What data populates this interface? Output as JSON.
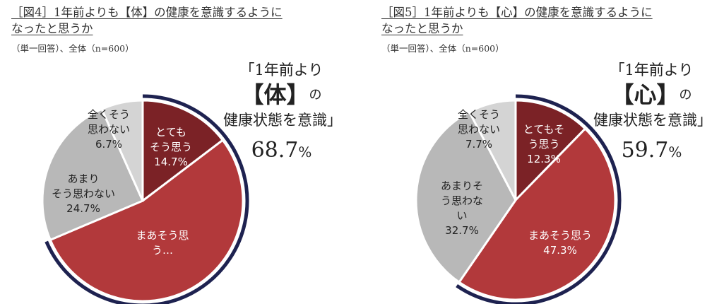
{
  "charts": [
    {
      "title_line1": "［図4］1年前よりも【体】の健康を意識するように",
      "title_line2": "なったと思うか",
      "base": "（単一回答）、全体（n=600）",
      "callout": {
        "line1": "「1年前より",
        "bracket_left": "【",
        "keyword": "体",
        "bracket_right": "】",
        "particle": "の",
        "line3": "健康状態を意識」",
        "value": "68.7",
        "unit": "%"
      }
    },
    {
      "title_line1": "［図5］1年前よりも【心】の健康を意識するように",
      "title_line2": "なったと思うか",
      "base": "（単一回答）、全体（n=600）",
      "callout": {
        "line1": "「1年前より",
        "bracket_left": "【",
        "keyword": "心",
        "bracket_right": "】",
        "particle": "の",
        "line3": "健康状態を意識」",
        "value": "59.7",
        "unit": "%"
      }
    }
  ],
  "chart_data": [
    {
      "type": "pie",
      "title": "［図4］1年前よりも【体】の健康を意識するようになったと思うか",
      "slices": [
        {
          "label_lines": [
            "とても",
            "そう思う"
          ],
          "value": 14.7,
          "value_label": "14.7%",
          "color": "#7b2226"
        },
        {
          "label_lines": [
            "まあそう思",
            "う…"
          ],
          "value": 54.0,
          "value_label": "",
          "color": "#b2393b"
        },
        {
          "label_lines": [
            "あまり",
            "そう思わない"
          ],
          "value": 24.7,
          "value_label": "24.7%",
          "color": "#b8b8b8"
        },
        {
          "label_lines": [
            "全くそう",
            "思わない"
          ],
          "value": 6.7,
          "value_label": "6.7%",
          "color": "#d4d4d4"
        }
      ],
      "highlight_color": "#1e2250"
    },
    {
      "type": "pie",
      "title": "［図5］1年前よりも【心】の健康を意識するようになったと思うか",
      "slices": [
        {
          "label_lines": [
            "とてもそ",
            "う思う"
          ],
          "value": 12.3,
          "value_label": "12.3%",
          "color": "#7b2226"
        },
        {
          "label_lines": [
            "まあそう思う"
          ],
          "value": 47.3,
          "value_label": "47.3%",
          "color": "#b2393b"
        },
        {
          "label_lines": [
            "あまりそ",
            "う思わな",
            "い"
          ],
          "value": 32.7,
          "value_label": "32.7%",
          "color": "#b8b8b8"
        },
        {
          "label_lines": [
            "全くそう",
            "思わない"
          ],
          "value": 7.7,
          "value_label": "7.7%",
          "color": "#d4d4d4"
        }
      ],
      "highlight_color": "#1e2250"
    }
  ]
}
